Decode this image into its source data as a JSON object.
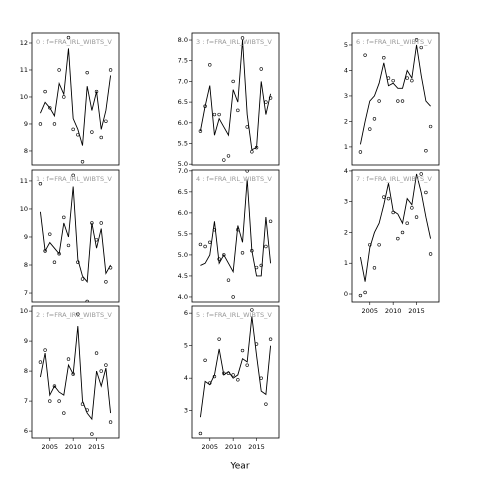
{
  "xlabel": "Year",
  "chart_data": [
    {
      "type": "line",
      "title": "0 : f=FRA_IRL_WIBTS_V",
      "x": [
        2003,
        2004,
        2005,
        2006,
        2007,
        2008,
        2009,
        2010,
        2011,
        2012,
        2013,
        2014,
        2015,
        2016,
        2017,
        2018
      ],
      "xlim": [
        2001.2,
        2019.8
      ],
      "ylim": [
        7.48,
        12.37
      ],
      "yticks": [
        8,
        9,
        10,
        11,
        12
      ],
      "series": [
        {
          "type": "line",
          "color": "#000000",
          "values": [
            9.4,
            9.8,
            9.6,
            9.3,
            10.5,
            10.1,
            11.8,
            9.2,
            8.8,
            8.2,
            10.4,
            9.5,
            10.2,
            8.8,
            9.5,
            10.8
          ]
        },
        {
          "type": "scatter",
          "color": "#000000",
          "values": [
            9.0,
            10.2,
            9.6,
            9.0,
            11.0,
            10.0,
            12.2,
            8.8,
            8.6,
            7.6,
            10.9,
            8.7,
            10.2,
            8.5,
            9.1,
            11.0
          ]
        }
      ]
    },
    {
      "type": "line",
      "title": "1 : f=FRA_IRL_WIBTS_V",
      "x": [
        2003,
        2004,
        2005,
        2006,
        2007,
        2008,
        2009,
        2010,
        2011,
        2012,
        2013,
        2014,
        2015,
        2016,
        2017,
        2018
      ],
      "xlim": [
        2001.2,
        2019.8
      ],
      "ylim": [
        6.68,
        11.39
      ],
      "yticks": [
        7,
        8,
        9,
        10,
        11
      ],
      "series": [
        {
          "type": "line",
          "color": "#000000",
          "values": [
            9.9,
            8.5,
            8.8,
            8.6,
            8.4,
            9.5,
            9.0,
            10.8,
            8.2,
            7.6,
            7.4,
            9.5,
            8.6,
            9.3,
            7.7,
            8.0
          ]
        },
        {
          "type": "scatter",
          "color": "#000000",
          "values": [
            10.9,
            8.5,
            9.1,
            8.1,
            8.4,
            9.7,
            8.7,
            11.2,
            8.1,
            7.5,
            6.7,
            9.5,
            8.9,
            9.5,
            7.4,
            7.9
          ]
        }
      ]
    },
    {
      "type": "line",
      "title": "2 : f=FRA_IRL_WIBTS_V",
      "x": [
        2003,
        2004,
        2005,
        2006,
        2007,
        2008,
        2009,
        2010,
        2011,
        2012,
        2013,
        2014,
        2015,
        2016,
        2017,
        2018
      ],
      "xlim": [
        2001.2,
        2019.8
      ],
      "xticks": [
        2005,
        2010,
        2015
      ],
      "ylim": [
        5.77,
        10.17
      ],
      "yticks": [
        6,
        7,
        8,
        9,
        10
      ],
      "series": [
        {
          "type": "line",
          "color": "#000000",
          "values": [
            7.8,
            8.6,
            7.2,
            7.5,
            7.3,
            7.2,
            8.2,
            7.9,
            9.5,
            7.0,
            6.6,
            6.4,
            8.0,
            7.5,
            8.1,
            6.6
          ]
        },
        {
          "type": "scatter",
          "color": "#000000",
          "values": [
            8.3,
            8.7,
            7.0,
            7.5,
            7.0,
            6.6,
            8.4,
            7.9,
            9.9,
            6.9,
            6.7,
            5.9,
            8.6,
            8.0,
            8.2,
            6.3
          ]
        }
      ]
    },
    {
      "type": "line",
      "title": "3 : f=FRA_IRL_WIBTS_V",
      "x": [
        2003,
        2004,
        2005,
        2006,
        2007,
        2008,
        2009,
        2010,
        2011,
        2012,
        2013,
        2014,
        2015,
        2016,
        2017,
        2018
      ],
      "xlim": [
        2001.2,
        2019.8
      ],
      "ylim": [
        4.98,
        8.17
      ],
      "yticks": [
        {
          "value": 5,
          "label": "5.0"
        },
        5.5,
        {
          "value": 6,
          "label": "6.0"
        },
        6.5,
        {
          "value": 7,
          "label": "7.0"
        },
        7.5,
        {
          "value": 8,
          "label": "8.0"
        }
      ],
      "series": [
        {
          "type": "line",
          "color": "#000000",
          "values": [
            5.8,
            6.4,
            6.9,
            5.7,
            6.1,
            5.9,
            5.7,
            6.8,
            6.5,
            8.0,
            6.2,
            5.35,
            5.4,
            7.0,
            6.2,
            6.7
          ]
        },
        {
          "type": "scatter",
          "color": "#000000",
          "values": [
            5.8,
            6.4,
            7.4,
            6.2,
            6.2,
            5.1,
            5.2,
            7.0,
            6.3,
            8.05,
            5.9,
            5.3,
            5.4,
            7.3,
            6.5,
            6.6
          ]
        }
      ]
    },
    {
      "type": "line",
      "title": "4 : f=FRA_IRL_WIBTS_V",
      "x": [
        2003,
        2004,
        2005,
        2006,
        2007,
        2008,
        2009,
        2010,
        2011,
        2012,
        2013,
        2014,
        2015,
        2016,
        2017,
        2018
      ],
      "xlim": [
        2001.2,
        2019.8
      ],
      "ylim": [
        3.88,
        7.02
      ],
      "yticks": [
        {
          "value": 4,
          "label": "4.0"
        },
        4.5,
        {
          "value": 5,
          "label": "5.0"
        },
        5.5,
        {
          "value": 6,
          "label": "6.0"
        },
        6.5,
        {
          "value": 7,
          "label": "7.0"
        }
      ],
      "series": [
        {
          "type": "line",
          "color": "#000000",
          "values": [
            4.75,
            4.8,
            5.0,
            5.8,
            4.8,
            5.0,
            4.8,
            4.6,
            5.7,
            5.3,
            6.8,
            5.1,
            4.5,
            4.5,
            5.9,
            4.8
          ]
        },
        {
          "type": "scatter",
          "color": "#000000",
          "values": [
            5.25,
            5.2,
            5.3,
            5.6,
            4.9,
            5.0,
            4.4,
            4.0,
            5.6,
            5.05,
            7.0,
            5.1,
            4.7,
            4.75,
            5.2,
            5.8
          ]
        }
      ]
    },
    {
      "type": "line",
      "title": "5 : f=FRA_IRL_WIBTS_V",
      "x": [
        2003,
        2004,
        2005,
        2006,
        2007,
        2008,
        2009,
        2010,
        2011,
        2012,
        2013,
        2014,
        2015,
        2016,
        2017,
        2018
      ],
      "xlim": [
        2001.2,
        2019.8
      ],
      "xticks": [
        2005,
        2010,
        2015
      ],
      "ylim": [
        2.16,
        6.22
      ],
      "yticks": [
        3,
        4,
        5,
        6
      ],
      "series": [
        {
          "type": "line",
          "color": "#000000",
          "values": [
            2.8,
            3.9,
            3.8,
            4.1,
            4.9,
            4.1,
            4.2,
            4.0,
            4.1,
            4.6,
            4.5,
            5.9,
            4.7,
            3.6,
            3.5,
            5.0
          ]
        },
        {
          "type": "scatter",
          "color": "#000000",
          "values": [
            2.3,
            4.55,
            3.85,
            4.05,
            5.2,
            4.15,
            4.15,
            4.1,
            3.95,
            4.85,
            4.4,
            6.1,
            5.05,
            4.0,
            3.2,
            5.2
          ]
        }
      ]
    },
    {
      "type": "line",
      "title": "6 : f=FRA_IRL_WIBTS_V",
      "x": [
        2003,
        2004,
        2005,
        2006,
        2007,
        2008,
        2009,
        2010,
        2011,
        2012,
        2013,
        2014,
        2015,
        2016,
        2017,
        2018
      ],
      "xlim": [
        2001.2,
        2019.8
      ],
      "ylim": [
        0.29,
        5.47
      ],
      "yticks": [
        1,
        2,
        3,
        4,
        5
      ],
      "series": [
        {
          "type": "line",
          "color": "#000000",
          "values": [
            1.1,
            2.0,
            2.8,
            3.0,
            3.5,
            4.3,
            3.4,
            3.5,
            3.3,
            3.3,
            4.0,
            3.7,
            5.0,
            3.8,
            2.8,
            2.6
          ]
        },
        {
          "type": "scatter",
          "color": "#000000",
          "values": [
            0.8,
            4.6,
            1.7,
            2.1,
            2.8,
            4.5,
            3.7,
            3.6,
            2.8,
            2.8,
            3.7,
            3.6,
            5.2,
            4.9,
            0.85,
            1.8
          ]
        }
      ]
    },
    {
      "type": "line",
      "title": "7 : f=FRA_IRL_WIBTS_V",
      "x": [
        2003,
        2004,
        2005,
        2006,
        2007,
        2008,
        2009,
        2010,
        2011,
        2012,
        2013,
        2014,
        2015,
        2016,
        2017,
        2018
      ],
      "xlim": [
        2001.2,
        2019.8
      ],
      "xticks": [
        2005,
        2010,
        2015
      ],
      "ylim": [
        -0.26,
        4.03
      ],
      "yticks": [
        0,
        1,
        2,
        3,
        4
      ],
      "series": [
        {
          "type": "line",
          "color": "#000000",
          "values": [
            1.2,
            0.4,
            1.5,
            2.0,
            2.3,
            2.9,
            3.6,
            2.7,
            2.6,
            2.3,
            3.1,
            2.9,
            3.9,
            3.3,
            2.5,
            1.8
          ]
        },
        {
          "type": "scatter",
          "color": "#000000",
          "values": [
            -0.05,
            0.05,
            1.6,
            0.85,
            1.6,
            3.15,
            3.1,
            2.65,
            1.8,
            2.0,
            2.3,
            2.8,
            2.5,
            3.9,
            3.3,
            1.3
          ]
        }
      ]
    }
  ]
}
